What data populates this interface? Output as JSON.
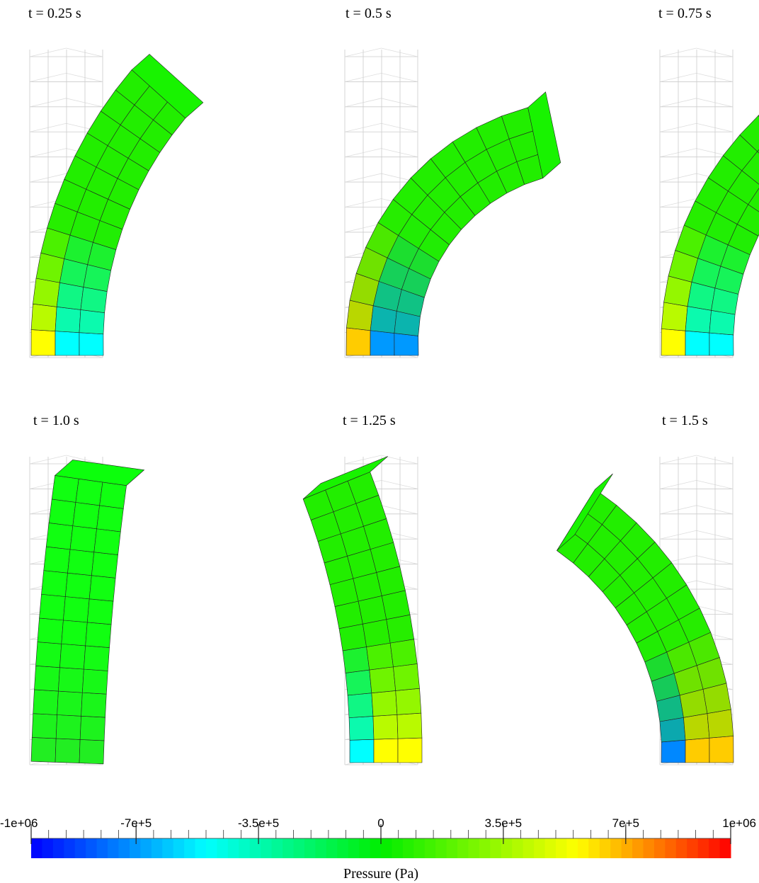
{
  "panels": [
    {
      "label": "t = 0.25 s"
    },
    {
      "label": "t = 0.5 s"
    },
    {
      "label": "t = 0.75 s"
    },
    {
      "label": "t = 1.0 s"
    },
    {
      "label": "t = 1.25 s"
    },
    {
      "label": "t = 1.5 s"
    }
  ],
  "colorbar": {
    "title": "Pressure (Pa)",
    "range": [
      -1000000,
      1000000
    ],
    "ticks": [
      {
        "value": -1000000,
        "label": "-1e+06"
      },
      {
        "value": -700000,
        "label": "-7e+5"
      },
      {
        "value": -350000,
        "label": "-3.5e+5"
      },
      0,
      {
        "value": 350000,
        "label": "3.5e+5"
      },
      {
        "value": 700000,
        "label": "7e+5"
      },
      {
        "value": 1000000,
        "label": "1e+06"
      }
    ]
  }
}
